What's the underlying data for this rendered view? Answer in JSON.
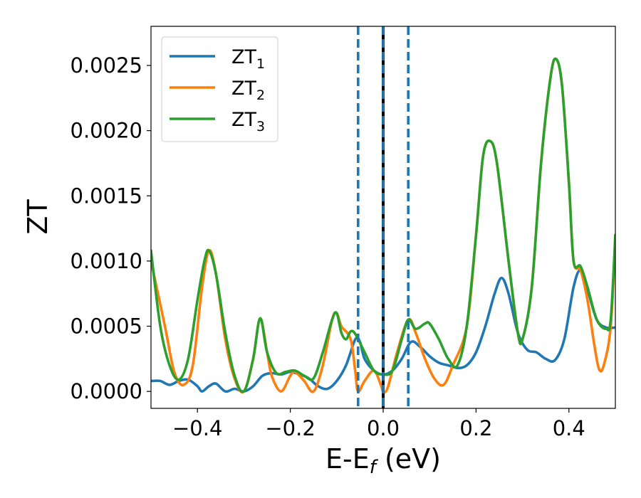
{
  "chart_data": {
    "type": "line",
    "xlabel_main": "E-E",
    "xlabel_sub": "f",
    "xlabel_unit": " (eV)",
    "ylabel": "ZT",
    "xlim": [
      -0.5,
      0.5
    ],
    "ylim": [
      -0.00013,
      0.0028
    ],
    "x_ticks": [
      -0.4,
      -0.2,
      0.0,
      0.2,
      0.4
    ],
    "x_tick_labels": [
      "−0.4",
      "−0.2",
      "0.0",
      "0.2",
      "0.4"
    ],
    "y_ticks": [
      0.0,
      0.0005,
      0.001,
      0.0015,
      0.002,
      0.0025
    ],
    "y_tick_labels": [
      "0.0000",
      "0.0005",
      "0.0010",
      "0.0015",
      "0.0020",
      "0.0025"
    ],
    "grid": false,
    "legend_position": "top-left",
    "vlines": [
      {
        "x": -0.054,
        "style": "dashed",
        "color": "#1f77b4"
      },
      {
        "x": 0.0,
        "style": "solid",
        "color": "#000000"
      },
      {
        "x": 0.0,
        "style": "dashed",
        "color": "#1f77b4"
      },
      {
        "x": 0.054,
        "style": "dashed",
        "color": "#1f77b4"
      }
    ],
    "series": [
      {
        "name": "ZT",
        "sub": "1",
        "color": "#1f77b4",
        "points": [
          [
            -0.5,
            8e-05
          ],
          [
            -0.48,
            8e-05
          ],
          [
            -0.46,
            5e-05
          ],
          [
            -0.44,
            8e-05
          ],
          [
            -0.42,
            9e-05
          ],
          [
            -0.4,
            4e-05
          ],
          [
            -0.39,
            0.0
          ],
          [
            -0.375,
            4e-05
          ],
          [
            -0.36,
            6e-05
          ],
          [
            -0.34,
            0.0
          ],
          [
            -0.32,
            2e-05
          ],
          [
            -0.3,
            0.0
          ],
          [
            -0.28,
            4e-05
          ],
          [
            -0.26,
            0.00012
          ],
          [
            -0.24,
            0.00014
          ],
          [
            -0.22,
            0.00013
          ],
          [
            -0.2,
            0.00015
          ],
          [
            -0.18,
            0.00013
          ],
          [
            -0.16,
            0.0001
          ],
          [
            -0.14,
            4e-05
          ],
          [
            -0.12,
            2e-05
          ],
          [
            -0.1,
            8e-05
          ],
          [
            -0.08,
            0.0002
          ],
          [
            -0.06,
            0.0004
          ],
          [
            -0.05,
            0.00038
          ],
          [
            -0.04,
            0.00025
          ],
          [
            -0.02,
            0.00016
          ],
          [
            0.0,
            0.00013
          ],
          [
            0.02,
            0.00016
          ],
          [
            0.04,
            0.00025
          ],
          [
            0.06,
            0.00038
          ],
          [
            0.08,
            0.00034
          ],
          [
            0.1,
            0.00027
          ],
          [
            0.12,
            0.00022
          ],
          [
            0.14,
            0.0002
          ],
          [
            0.16,
            0.00018
          ],
          [
            0.18,
            0.0002
          ],
          [
            0.2,
            0.0003
          ],
          [
            0.22,
            0.0005
          ],
          [
            0.24,
            0.00075
          ],
          [
            0.255,
            0.00087
          ],
          [
            0.27,
            0.00075
          ],
          [
            0.29,
            0.00045
          ],
          [
            0.31,
            0.00032
          ],
          [
            0.33,
            0.0003
          ],
          [
            0.35,
            0.00025
          ],
          [
            0.37,
            0.00024
          ],
          [
            0.39,
            0.0004
          ],
          [
            0.41,
            0.0008
          ],
          [
            0.425,
            0.00093
          ],
          [
            0.44,
            0.00078
          ],
          [
            0.46,
            0.00055
          ],
          [
            0.48,
            0.00049
          ],
          [
            0.5,
            0.00049
          ]
        ]
      },
      {
        "name": "ZT",
        "sub": "2",
        "color": "#ff7f0e",
        "points": [
          [
            -0.5,
            0.001
          ],
          [
            -0.47,
            0.0005
          ],
          [
            -0.45,
            0.00015
          ],
          [
            -0.43,
            5e-05
          ],
          [
            -0.41,
            0.0002
          ],
          [
            -0.39,
            0.0008
          ],
          [
            -0.375,
            0.00108
          ],
          [
            -0.36,
            0.0009
          ],
          [
            -0.34,
            0.0004
          ],
          [
            -0.32,
            0.0001
          ],
          [
            -0.3,
            0.0
          ],
          [
            -0.28,
            0.00025
          ],
          [
            -0.265,
            0.00056
          ],
          [
            -0.25,
            0.0003
          ],
          [
            -0.24,
            0.00012
          ],
          [
            -0.22,
            0.0
          ],
          [
            -0.2,
            0.00012
          ],
          [
            -0.19,
            0.00015
          ],
          [
            -0.17,
            8e-05
          ],
          [
            -0.15,
            0.0
          ],
          [
            -0.13,
            0.0002
          ],
          [
            -0.11,
            0.00055
          ],
          [
            -0.1,
            0.0006
          ],
          [
            -0.09,
            0.0005
          ],
          [
            -0.07,
            0.0004
          ],
          [
            -0.06,
            0.00015
          ],
          [
            -0.054,
            0.0
          ],
          [
            -0.04,
            8e-05
          ],
          [
            -0.02,
            0.00016
          ],
          [
            -0.005,
            5e-05
          ],
          [
            0.0,
            0.0
          ],
          [
            0.01,
            3e-05
          ],
          [
            0.03,
            0.0003
          ],
          [
            0.054,
            0.00055
          ],
          [
            0.07,
            0.00045
          ],
          [
            0.09,
            0.00025
          ],
          [
            0.11,
            0.0001
          ],
          [
            0.13,
            5e-05
          ],
          [
            0.15,
            0.0002
          ],
          [
            0.18,
            0.0005
          ],
          [
            0.2,
            0.0012
          ],
          [
            0.215,
            0.0018
          ],
          [
            0.23,
            0.00192
          ],
          [
            0.245,
            0.00175
          ],
          [
            0.27,
            0.001
          ],
          [
            0.29,
            0.00045
          ],
          [
            0.3,
            0.0004
          ],
          [
            0.32,
            0.0008
          ],
          [
            0.34,
            0.00175
          ],
          [
            0.36,
            0.0024
          ],
          [
            0.372,
            0.00255
          ],
          [
            0.385,
            0.00235
          ],
          [
            0.4,
            0.0016
          ],
          [
            0.41,
            0.001
          ],
          [
            0.425,
            0.00093
          ],
          [
            0.44,
            0.0007
          ],
          [
            0.455,
            0.00035
          ],
          [
            0.465,
            0.00017
          ],
          [
            0.475,
            0.0002
          ],
          [
            0.49,
            0.0005
          ],
          [
            0.5,
            0.0012
          ]
        ]
      },
      {
        "name": "ZT",
        "sub": "3",
        "color": "#2ca02c",
        "points": [
          [
            -0.5,
            0.00108
          ],
          [
            -0.48,
            0.0005
          ],
          [
            -0.46,
            0.0002
          ],
          [
            -0.44,
            9e-05
          ],
          [
            -0.42,
            0.00025
          ],
          [
            -0.4,
            0.0007
          ],
          [
            -0.385,
            0.001
          ],
          [
            -0.375,
            0.00108
          ],
          [
            -0.36,
            0.0009
          ],
          [
            -0.34,
            0.00045
          ],
          [
            -0.32,
            0.00012
          ],
          [
            -0.3,
            0.0
          ],
          [
            -0.28,
            0.00025
          ],
          [
            -0.265,
            0.00056
          ],
          [
            -0.25,
            0.0003
          ],
          [
            -0.23,
            0.00014
          ],
          [
            -0.21,
            0.00015
          ],
          [
            -0.19,
            0.00016
          ],
          [
            -0.17,
            0.00012
          ],
          [
            -0.15,
            0.0001
          ],
          [
            -0.13,
            0.0003
          ],
          [
            -0.11,
            0.00055
          ],
          [
            -0.1,
            0.0006
          ],
          [
            -0.09,
            0.00045
          ],
          [
            -0.08,
            0.0004
          ],
          [
            -0.07,
            0.00046
          ],
          [
            -0.06,
            0.00044
          ],
          [
            -0.04,
            0.0003
          ],
          [
            -0.02,
            0.00016
          ],
          [
            0.0,
            0.00013
          ],
          [
            0.02,
            0.00016
          ],
          [
            0.04,
            0.0004
          ],
          [
            0.054,
            0.00055
          ],
          [
            0.07,
            0.00048
          ],
          [
            0.09,
            0.00052
          ],
          [
            0.1,
            0.00052
          ],
          [
            0.12,
            0.0004
          ],
          [
            0.14,
            0.00025
          ],
          [
            0.16,
            0.0002
          ],
          [
            0.18,
            0.0005
          ],
          [
            0.2,
            0.0012
          ],
          [
            0.215,
            0.0018
          ],
          [
            0.23,
            0.00192
          ],
          [
            0.245,
            0.00175
          ],
          [
            0.27,
            0.001
          ],
          [
            0.29,
            0.00045
          ],
          [
            0.3,
            0.0004
          ],
          [
            0.32,
            0.0008
          ],
          [
            0.34,
            0.00175
          ],
          [
            0.36,
            0.0024
          ],
          [
            0.372,
            0.00255
          ],
          [
            0.385,
            0.00235
          ],
          [
            0.4,
            0.0016
          ],
          [
            0.41,
            0.001
          ],
          [
            0.425,
            0.00096
          ],
          [
            0.44,
            0.0008
          ],
          [
            0.46,
            0.00055
          ],
          [
            0.48,
            0.00048
          ],
          [
            0.49,
            0.00055
          ],
          [
            0.5,
            0.0012
          ]
        ]
      }
    ]
  }
}
